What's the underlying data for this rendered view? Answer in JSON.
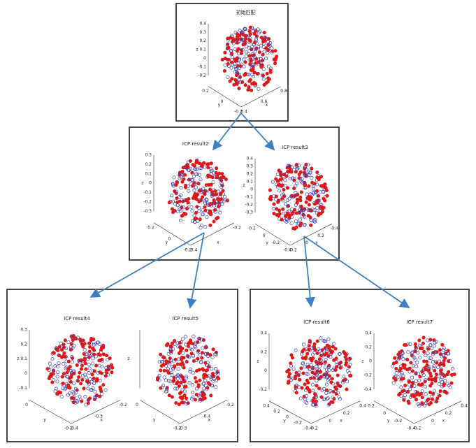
{
  "panels": [
    {
      "plots": [
        {
          "title": "初始匹配",
          "z_label": "z",
          "y_label": "y",
          "x_label": "x",
          "z_ticks": [
            "0.4",
            "0.3",
            "0.2",
            "0.1",
            "0",
            "-0.1",
            "-0.2"
          ],
          "y_ticks": [
            "0.2",
            "0",
            "-0.2"
          ],
          "x_ticks": [
            "0.4",
            "0.6",
            "0.8"
          ]
        }
      ]
    },
    {
      "plots": [
        {
          "title": "ICP result2",
          "z_label": "z",
          "y_label": "y",
          "x_label": "x",
          "z_ticks": [
            "0.3",
            "0.2",
            "0.1",
            "0",
            "-0.1",
            "-0.2",
            "-0.3"
          ],
          "y_ticks": [
            "0.2",
            "0",
            "-0.2"
          ],
          "x_ticks": [
            "-0.4",
            "-0.2"
          ]
        },
        {
          "title": "ICP result3",
          "z_label": "z",
          "y_label": "y",
          "x_label": "x",
          "z_ticks": [
            "0.4",
            "0.3",
            "0.2",
            "0.1",
            "0",
            "-0.1",
            "-0.2",
            "-0.3"
          ],
          "y_ticks": [
            "0.2",
            "0",
            "-0.2",
            "-0.4"
          ],
          "x_ticks": [
            "-0.2",
            "0",
            "0.2",
            "0.4"
          ]
        }
      ]
    },
    {
      "plots": [
        {
          "title": "ICP result4",
          "z_label": "z",
          "y_label": "y",
          "x_label": "x",
          "z_ticks": [
            "0.3",
            "0.2",
            "0.1",
            "0",
            "-0.1"
          ],
          "y_ticks": [
            "0",
            "-0.2"
          ],
          "x_ticks": [
            "-0.4",
            "-0.3",
            "-0.2"
          ]
        },
        {
          "title": "ICP result5",
          "z_label": "z",
          "y_label": "y",
          "x_label": "x",
          "z_ticks": [],
          "y_ticks": [
            "0",
            "-0.2"
          ],
          "x_ticks": [
            "-0.3",
            "-0.4",
            "-0.2"
          ]
        }
      ]
    },
    {
      "plots": [
        {
          "title": "ICP result6",
          "z_label": "z",
          "y_label": "y",
          "x_label": "x",
          "z_ticks": [
            "0.4",
            "0.2",
            "0",
            "-0.2"
          ],
          "y_ticks": [
            "0.4",
            "0.2",
            "0",
            "-0.2",
            "-0.4"
          ],
          "x_ticks": [
            "-0.2",
            "0",
            "0.2",
            "0.4"
          ]
        },
        {
          "title": "ICP result7",
          "z_label": "z",
          "y_label": "y",
          "x_label": "x",
          "z_ticks": [
            "0.4",
            "0.2",
            "0",
            "-0.2",
            "-0.4"
          ],
          "y_ticks": [
            "0.2",
            "0",
            "-0.2",
            "-0.4"
          ],
          "x_ticks": [
            "-0.2",
            "0",
            "0.2",
            "0.4"
          ]
        }
      ]
    }
  ]
}
